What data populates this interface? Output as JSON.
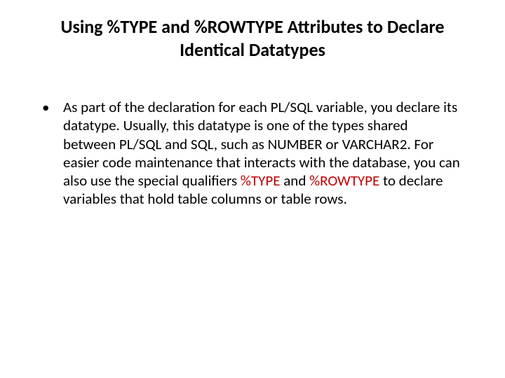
{
  "colors": {
    "highlight": "#c00000",
    "text": "#000000",
    "background": "#ffffff"
  },
  "title": "Using %TYPE and %ROWTYPE Attributes to Declare Identical Datatypes",
  "bullet": {
    "seg1": "As part of the declaration for each PL/SQL variable, you declare its datatype. Usually, this datatype is one of the types shared between PL/SQL and SQL, such as NUMBER or VARCHAR2. For easier code maintenance that interacts with the database, you can also use the special qualifiers ",
    "hl1": "%TYPE",
    "seg2": " and ",
    "hl2": "%ROWTYPE",
    "seg3": " to declare variables that hold table columns or table rows."
  }
}
